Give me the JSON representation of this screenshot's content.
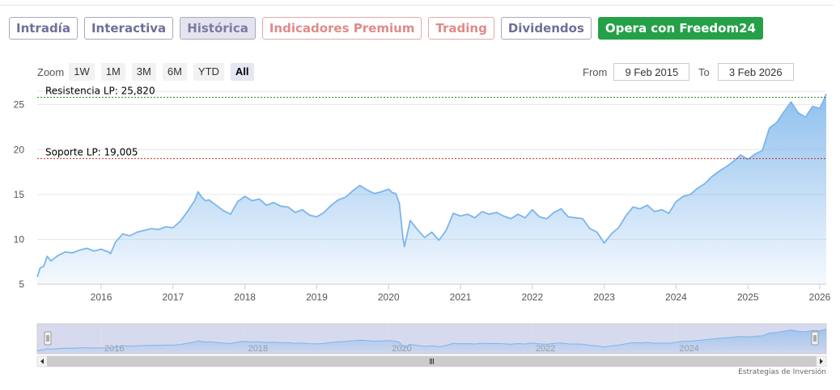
{
  "tabs": [
    {
      "label": "Intradía",
      "style": "default"
    },
    {
      "label": "Interactiva",
      "style": "default"
    },
    {
      "label": "Histórica",
      "style": "active"
    },
    {
      "label": "Indicadores Premium",
      "style": "red"
    },
    {
      "label": "Trading",
      "style": "red"
    },
    {
      "label": "Dividendos",
      "style": "default"
    },
    {
      "label": "Opera con Freedom24",
      "style": "green"
    }
  ],
  "zoom": {
    "label": "Zoom",
    "buttons": [
      "1W",
      "1M",
      "3M",
      "6M",
      "YTD",
      "All"
    ],
    "selected": "All"
  },
  "range": {
    "from_label": "From",
    "from_value": "9 Feb 2015",
    "to_label": "To",
    "to_value": "3 Feb 2026"
  },
  "credit": "Estrategias de Inversión",
  "colors": {
    "line": "#7cb5ec",
    "area_top": "#7cb5ec",
    "resistance": "#2a8a2a",
    "support": "#c0282d",
    "navigator_mask": "#c9cde8"
  },
  "chart_data": {
    "type": "area",
    "x_axis": {
      "min": 2015.11,
      "max": 2026.09,
      "ticks": [
        2016,
        2017,
        2018,
        2019,
        2020,
        2021,
        2022,
        2023,
        2024,
        2025,
        2026
      ],
      "tick_labels": [
        "2016",
        "2017",
        "2018",
        "2019",
        "2020",
        "2021",
        "2022",
        "2023",
        "2024",
        "2025",
        "2026"
      ]
    },
    "y_axis": {
      "min": 5,
      "max": 26.5,
      "ticks": [
        5,
        10,
        15,
        20,
        25
      ],
      "tick_labels": [
        "5",
        "10",
        "15",
        "20",
        "25"
      ]
    },
    "grid": true,
    "series": [
      {
        "x": [
          2015.11,
          2015.15,
          2015.2,
          2015.25,
          2015.3,
          2015.35,
          2015.4,
          2015.5,
          2015.6,
          2015.7,
          2015.8,
          2015.9,
          2016.0,
          2016.1,
          2016.13,
          2016.2,
          2016.3,
          2016.4,
          2016.5,
          2016.6,
          2016.7,
          2016.8,
          2016.9,
          2017.0,
          2017.1,
          2017.2,
          2017.3,
          2017.35,
          2017.4,
          2017.45,
          2017.5,
          2017.6,
          2017.7,
          2017.8,
          2017.9,
          2018.0,
          2018.1,
          2018.2,
          2018.3,
          2018.4,
          2018.5,
          2018.6,
          2018.7,
          2018.8,
          2018.9,
          2019.0,
          2019.1,
          2019.2,
          2019.3,
          2019.4,
          2019.5,
          2019.6,
          2019.7,
          2019.8,
          2019.9,
          2020.0,
          2020.05,
          2020.1,
          2020.15,
          2020.2,
          2020.22,
          2020.3,
          2020.4,
          2020.5,
          2020.6,
          2020.7,
          2020.8,
          2020.9,
          2021.0,
          2021.1,
          2021.2,
          2021.3,
          2021.4,
          2021.5,
          2021.6,
          2021.7,
          2021.8,
          2021.9,
          2022.0,
          2022.1,
          2022.2,
          2022.3,
          2022.4,
          2022.5,
          2022.6,
          2022.7,
          2022.8,
          2022.9,
          2023.0,
          2023.1,
          2023.2,
          2023.3,
          2023.4,
          2023.5,
          2023.6,
          2023.7,
          2023.8,
          2023.9,
          2024.0,
          2024.1,
          2024.2,
          2024.3,
          2024.4,
          2024.5,
          2024.6,
          2024.7,
          2024.8,
          2024.9,
          2025.0,
          2025.1,
          2025.2,
          2025.3,
          2025.4,
          2025.5,
          2025.6,
          2025.7,
          2025.8,
          2025.9,
          2026.0,
          2026.05,
          2026.09
        ],
        "values": [
          5.8,
          6.8,
          7.0,
          8.1,
          7.6,
          7.9,
          8.2,
          8.6,
          8.5,
          8.8,
          9.0,
          8.7,
          8.9,
          8.6,
          8.4,
          9.7,
          10.6,
          10.4,
          10.8,
          11.0,
          11.2,
          11.1,
          11.4,
          11.3,
          12.0,
          13.1,
          14.3,
          15.3,
          14.7,
          14.3,
          14.4,
          13.8,
          13.2,
          12.8,
          14.2,
          14.8,
          14.3,
          14.5,
          13.8,
          14.1,
          13.7,
          13.6,
          13.0,
          13.3,
          12.7,
          12.5,
          13.0,
          13.8,
          14.4,
          14.7,
          15.4,
          16.0,
          15.5,
          15.1,
          15.3,
          15.6,
          15.2,
          15.1,
          14.0,
          10.1,
          9.2,
          12.1,
          11.1,
          10.2,
          10.8,
          9.9,
          11.0,
          12.9,
          12.6,
          12.8,
          12.4,
          13.1,
          12.8,
          13.0,
          12.6,
          12.3,
          12.8,
          12.4,
          13.3,
          12.5,
          12.3,
          13.0,
          13.4,
          12.5,
          12.4,
          12.3,
          11.2,
          10.8,
          9.6,
          10.6,
          11.3,
          12.6,
          13.6,
          13.4,
          13.8,
          13.1,
          13.3,
          12.9,
          14.2,
          14.8,
          15.0,
          15.7,
          16.2,
          17.0,
          17.6,
          18.1,
          18.7,
          19.4,
          18.9,
          19.5,
          19.9,
          22.4,
          23.0,
          24.2,
          25.3,
          24.1,
          23.6,
          24.8,
          24.6,
          25.4,
          26.2
        ]
      }
    ],
    "plot_lines": [
      {
        "label": "Resistencia LP: 25,820",
        "value": 25.82,
        "color_key": "resistance"
      },
      {
        "label": "Soporte LP: 19,005",
        "value": 19.005,
        "color_key": "support"
      }
    ],
    "navigator": {
      "tick_labels": [
        "2016",
        "2018",
        "2020",
        "2022",
        "2024"
      ],
      "ticks": [
        2016,
        2018,
        2020,
        2022,
        2024
      ]
    }
  }
}
